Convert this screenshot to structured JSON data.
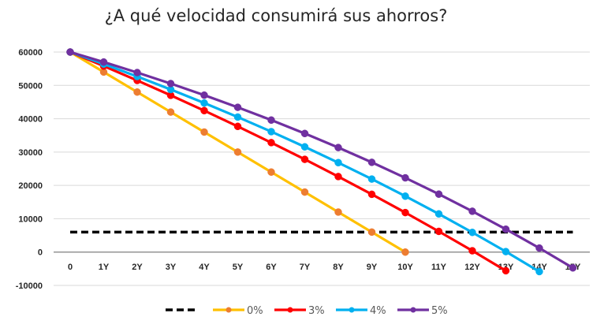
{
  "chart_data": {
    "type": "line",
    "title": "¿A qué velocidad consumirá sus ahorros?",
    "xlabel": "",
    "ylabel": "",
    "categories": [
      "0",
      "1Y",
      "2Y",
      "3Y",
      "4Y",
      "5Y",
      "6Y",
      "7Y",
      "8Y",
      "9Y",
      "10Y",
      "11Y",
      "12Y",
      "13Y",
      "14Y",
      "15Y"
    ],
    "ylim": [
      -10000,
      60000
    ],
    "yticks": [
      60000,
      50000,
      40000,
      30000,
      20000,
      10000,
      0,
      -10000
    ],
    "grid": true,
    "legend_position": "bottom",
    "series": [
      {
        "name": "",
        "style": "dashed",
        "color": "#000000",
        "marker": false,
        "values": [
          6000,
          6000,
          6000,
          6000,
          6000,
          6000,
          6000,
          6000,
          6000,
          6000,
          6000,
          6000,
          6000,
          6000,
          6000,
          6000
        ]
      },
      {
        "name": "0%",
        "style": "solid",
        "color": "#FFC000",
        "marker_color": "#ED7D31",
        "marker": true,
        "values": [
          60000,
          54000,
          48000,
          42000,
          36000,
          30000,
          24000,
          18000,
          12000,
          6000,
          0
        ]
      },
      {
        "name": "3%",
        "style": "solid",
        "color": "#FF0000",
        "marker_color": "#FF0000",
        "marker": true,
        "values": [
          60000,
          55800,
          51474,
          47018,
          42429,
          37702,
          32833,
          27818,
          22652,
          17332,
          11852,
          6207,
          393,
          -5595
        ]
      },
      {
        "name": "4%",
        "style": "solid",
        "color": "#00B0F0",
        "marker_color": "#00B0F0",
        "marker": true,
        "values": [
          60000,
          56400,
          52656,
          48762,
          44713,
          40501,
          36122,
          31567,
          26830,
          21903,
          16779,
          11450,
          5908,
          144,
          -5850
        ]
      },
      {
        "name": "5%",
        "style": "solid",
        "color": "#7030A0",
        "marker_color": "#7030A0",
        "marker": true,
        "values": [
          60000,
          57000,
          53850,
          50543,
          47070,
          43423,
          39594,
          35574,
          31353,
          26921,
          22267,
          17380,
          12249,
          6861,
          1204,
          -4736
        ]
      }
    ]
  }
}
